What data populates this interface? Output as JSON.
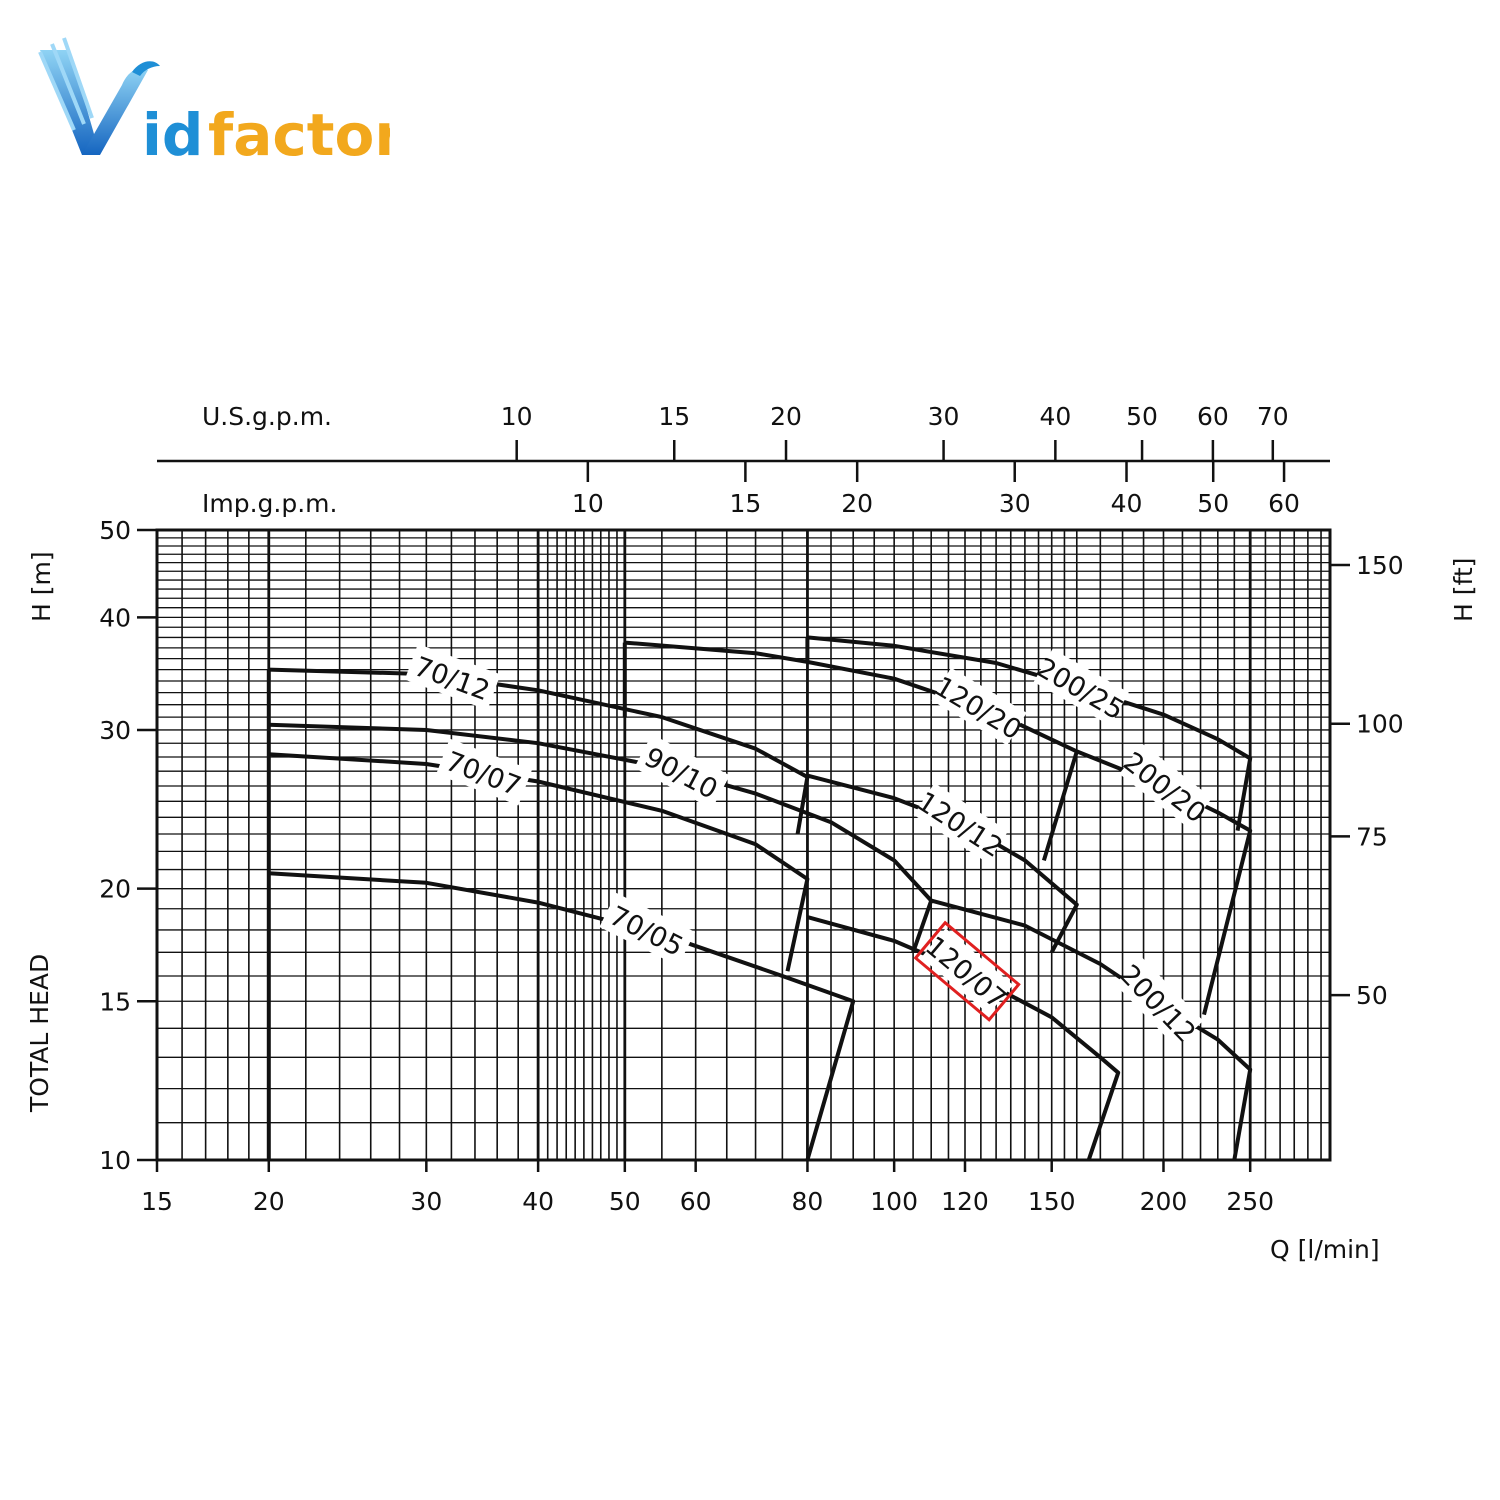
{
  "logo": {
    "text_v": "V",
    "text_id": "id",
    "text_factor": "factor",
    "colors": {
      "blue": "#1f8fd6",
      "gold": "#f2a81d"
    }
  },
  "chart_data": {
    "type": "line",
    "scale": "log-log",
    "x": {
      "label": "Q [l/min]",
      "range": [
        15,
        300
      ],
      "ticks": [
        15,
        20,
        30,
        40,
        50,
        60,
        80,
        100,
        120,
        150,
        200,
        250
      ]
    },
    "y": {
      "label": "H [m]",
      "side_label": "TOTAL HEAD",
      "range": [
        10,
        50
      ],
      "ticks": [
        10,
        15,
        20,
        30,
        40,
        50
      ]
    },
    "y2": {
      "label": "H [ft]",
      "ticks": [
        50,
        75,
        100,
        150
      ]
    },
    "top_axes": [
      {
        "label": "U.S.g.p.m.",
        "ticks": [
          10,
          15,
          20,
          30,
          40,
          50,
          60,
          70
        ]
      },
      {
        "label": "Imp.g.p.m.",
        "ticks": [
          10,
          15,
          20,
          30,
          40,
          50,
          60
        ]
      }
    ],
    "grid": true,
    "highlight_color": "#e02020",
    "series": [
      {
        "name": "70/05",
        "label": "70/05",
        "points": [
          [
            20,
            20.8
          ],
          [
            30,
            20.3
          ],
          [
            40,
            19.3
          ],
          [
            55,
            17.8
          ],
          [
            75,
            16.0
          ],
          [
            90,
            15.0
          ],
          [
            80,
            10.0
          ]
        ]
      },
      {
        "name": "70/07",
        "label": "70/07",
        "points": [
          [
            20,
            28.2
          ],
          [
            30,
            27.5
          ],
          [
            40,
            26.3
          ],
          [
            55,
            24.4
          ],
          [
            70,
            22.4
          ],
          [
            80,
            20.5
          ],
          [
            76,
            16.2
          ]
        ]
      },
      {
        "name": "70/12",
        "label": "70/12",
        "points": [
          [
            20,
            35.0
          ],
          [
            30,
            34.6
          ],
          [
            40,
            33.2
          ],
          [
            55,
            31.0
          ],
          [
            70,
            28.6
          ],
          [
            80,
            26.6
          ],
          [
            78,
            23.0
          ]
        ]
      },
      {
        "name": "90/10",
        "label": "90/10",
        "points": [
          [
            20,
            30.4
          ],
          [
            30,
            30.0
          ],
          [
            40,
            29.0
          ],
          [
            55,
            27.3
          ],
          [
            70,
            25.5
          ],
          [
            85,
            23.7
          ],
          [
            100,
            21.5
          ],
          [
            110,
            19.4
          ],
          [
            105,
            17.0
          ]
        ]
      },
      {
        "name": "120/07",
        "label": "120/07",
        "highlighted": true,
        "points": [
          [
            80,
            18.6
          ],
          [
            100,
            17.5
          ],
          [
            120,
            16.2
          ],
          [
            150,
            14.4
          ],
          [
            170,
            13.0
          ],
          [
            178,
            12.5
          ],
          [
            165,
            10.0
          ]
        ]
      },
      {
        "name": "120/12",
        "label": "120/12",
        "points": [
          [
            80,
            26.7
          ],
          [
            100,
            25.2
          ],
          [
            120,
            23.5
          ],
          [
            140,
            21.5
          ],
          [
            160,
            19.2
          ],
          [
            150,
            17.0
          ]
        ]
      },
      {
        "name": "120/20",
        "label": "120/20",
        "points": [
          [
            50,
            37.5
          ],
          [
            70,
            36.5
          ],
          [
            80,
            35.7
          ],
          [
            100,
            34.2
          ],
          [
            130,
            31.3
          ],
          [
            160,
            28.4
          ],
          [
            147,
            21.5
          ]
        ]
      },
      {
        "name": "200/12",
        "label": "200/12",
        "points": [
          [
            110,
            19.4
          ],
          [
            140,
            18.2
          ],
          [
            170,
            16.5
          ],
          [
            200,
            14.8
          ],
          [
            230,
            13.6
          ],
          [
            250,
            12.6
          ],
          [
            240,
            10.0
          ]
        ]
      },
      {
        "name": "200/20",
        "label": "200/20",
        "points": [
          [
            160,
            28.4
          ],
          [
            200,
            26.0
          ],
          [
            230,
            24.3
          ],
          [
            250,
            23.2
          ],
          [
            222,
            14.5
          ]
        ]
      },
      {
        "name": "200/25",
        "label": "200/25",
        "points": [
          [
            80,
            38.0
          ],
          [
            100,
            37.2
          ],
          [
            130,
            35.6
          ],
          [
            160,
            33.5
          ],
          [
            200,
            31.2
          ],
          [
            230,
            29.3
          ],
          [
            250,
            27.9
          ],
          [
            242,
            23.2
          ]
        ]
      },
      {
        "name": "70/12 drop",
        "points": [
          [
            20,
            35.0
          ],
          [
            20,
            10.0
          ]
        ]
      },
      {
        "name": "120/20 drop",
        "points": [
          [
            50,
            37.5
          ],
          [
            50,
            31.0
          ]
        ]
      },
      {
        "name": "200/25 drop",
        "points": [
          [
            80,
            38.0
          ],
          [
            80,
            35.7
          ]
        ]
      }
    ]
  }
}
